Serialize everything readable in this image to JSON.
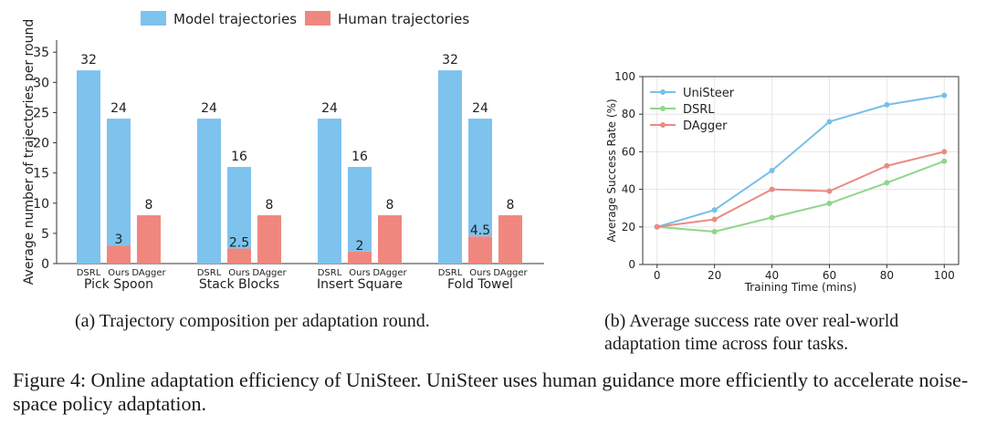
{
  "colors": {
    "model": "#7dc3ee",
    "human": "#f0877f",
    "unisteer": "#78c0e8",
    "dsrl": "#8fd68a",
    "dagger": "#ea8a84",
    "axis": "#333333",
    "grid": "#e6e6e6"
  },
  "legend_a": {
    "model": "Model trajectories",
    "human": "Human trajectories"
  },
  "chart_data": [
    {
      "type": "bar",
      "ylabel": "Average number of trajectories per round",
      "ylim": [
        0,
        37
      ],
      "yticks": [
        0,
        5,
        10,
        15,
        20,
        25,
        30,
        35
      ],
      "groups": [
        "Pick Spoon",
        "Stack Blocks",
        "Insert Square",
        "Fold Towel"
      ],
      "methods": [
        "DSRL",
        "Ours",
        "DAgger"
      ],
      "series": [
        {
          "name": "Model trajectories",
          "values": [
            [
              32,
              24,
              0
            ],
            [
              24,
              16,
              0
            ],
            [
              24,
              16,
              0
            ],
            [
              32,
              24,
              0
            ]
          ]
        },
        {
          "name": "Human trajectories",
          "values": [
            [
              0,
              3,
              8
            ],
            [
              0,
              2.5,
              8
            ],
            [
              0,
              2,
              8
            ],
            [
              0,
              4.5,
              8
            ]
          ]
        }
      ],
      "total_labels": [
        [
          "32",
          "24",
          "8"
        ],
        [
          "24",
          "16",
          "8"
        ],
        [
          "24",
          "16",
          "8"
        ],
        [
          "32",
          "24",
          "8"
        ]
      ],
      "inner_labels": [
        "3",
        "2.5",
        "2",
        "4.5"
      ],
      "grid": false
    },
    {
      "type": "line",
      "xlabel": "Training Time (mins)",
      "ylabel": "Average Success Rate (%)",
      "x": [
        0,
        20,
        40,
        60,
        80,
        100
      ],
      "xlim": [
        -5,
        105
      ],
      "ylim": [
        0,
        100
      ],
      "xticks": [
        0,
        20,
        40,
        60,
        80,
        100
      ],
      "yticks": [
        0,
        20,
        40,
        60,
        80,
        100
      ],
      "grid": true,
      "legend_position": "top-left",
      "series": [
        {
          "name": "UniSteer",
          "values": [
            20,
            29,
            50,
            76,
            85,
            90
          ]
        },
        {
          "name": "DSRL",
          "values": [
            20,
            17.5,
            25,
            32.5,
            43.5,
            55
          ]
        },
        {
          "name": "DAgger",
          "values": [
            20,
            24,
            40,
            39,
            52.5,
            60
          ]
        }
      ]
    }
  ],
  "captions": {
    "a": "(a) Trajectory composition per adaptation round.",
    "b_line1": "(b) Average success rate over real-world",
    "b_line2": "adaptation time across four tasks.",
    "figure": "Figure 4: Online adaptation efficiency of UniSteer. UniSteer uses human guidance more efficiently to accelerate noise-space policy adaptation."
  }
}
